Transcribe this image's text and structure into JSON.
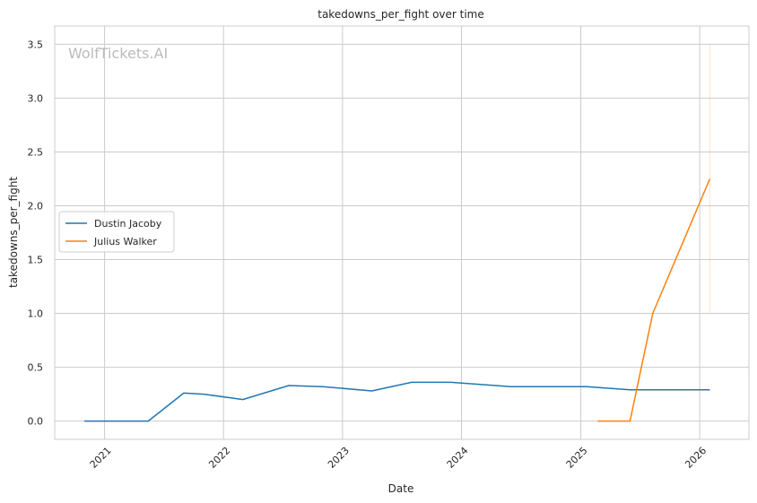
{
  "chart_data": {
    "type": "line",
    "title": "takedowns_per_fight over time",
    "xlabel": "Date",
    "ylabel": "takedowns_per_fight",
    "watermark": "WolfTickets.AI",
    "x_ticks": [
      "2021",
      "2022",
      "2023",
      "2024",
      "2025",
      "2026"
    ],
    "y_ticks": [
      "0.0",
      "0.5",
      "1.0",
      "1.5",
      "2.0",
      "2.5",
      "3.0",
      "3.5"
    ],
    "xlim": [
      "2020-08-01",
      "2026-06-01"
    ],
    "ylim": [
      -0.17,
      3.67
    ],
    "grid": true,
    "legend_position": "center-left",
    "series": [
      {
        "name": "Dustin Jacoby",
        "color": "#1f77b4",
        "points": [
          {
            "x": "2020-10-31",
            "y": 0.0
          },
          {
            "x": "2021-05-15",
            "y": 0.0
          },
          {
            "x": "2021-09-01",
            "y": 0.26
          },
          {
            "x": "2021-11-01",
            "y": 0.25
          },
          {
            "x": "2022-03-01",
            "y": 0.2
          },
          {
            "x": "2022-07-20",
            "y": 0.33
          },
          {
            "x": "2022-11-01",
            "y": 0.32
          },
          {
            "x": "2023-04-01",
            "y": 0.28
          },
          {
            "x": "2023-08-01",
            "y": 0.36
          },
          {
            "x": "2023-12-01",
            "y": 0.36
          },
          {
            "x": "2024-06-01",
            "y": 0.32
          },
          {
            "x": "2025-01-20",
            "y": 0.32
          },
          {
            "x": "2025-06-01",
            "y": 0.29
          },
          {
            "x": "2026-02-01",
            "y": 0.29
          }
        ]
      },
      {
        "name": "Julius Walker",
        "color": "#ff7f0e",
        "points": [
          {
            "x": "2025-02-22",
            "y": 0.0
          },
          {
            "x": "2025-06-01",
            "y": 0.0
          },
          {
            "x": "2025-08-10",
            "y": 1.0
          },
          {
            "x": "2026-02-01",
            "y": 2.25
          }
        ]
      }
    ],
    "annotations": [
      {
        "x": "2026-02-01",
        "y_from": 1.0,
        "y_to": 3.5,
        "color": "#ff7f0e"
      }
    ]
  }
}
